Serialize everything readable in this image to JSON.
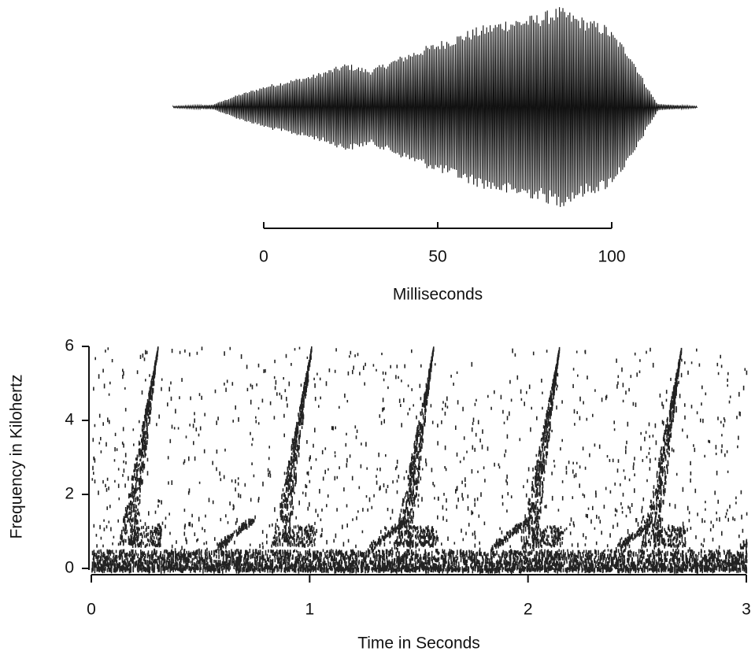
{
  "chart_data": [
    {
      "type": "waveform",
      "xlabel": "Milliseconds",
      "xlim": [
        0,
        100
      ],
      "xticks": [
        0,
        50,
        100
      ]
    },
    {
      "type": "spectrogram",
      "xlabel": "Time in Seconds",
      "ylabel": "Frequency in Kilohertz",
      "xlim": [
        0,
        3
      ],
      "xticks": [
        0,
        1,
        2,
        3
      ],
      "ylim": [
        0,
        6
      ],
      "yticks": [
        0,
        2,
        4,
        6
      ]
    }
  ]
}
